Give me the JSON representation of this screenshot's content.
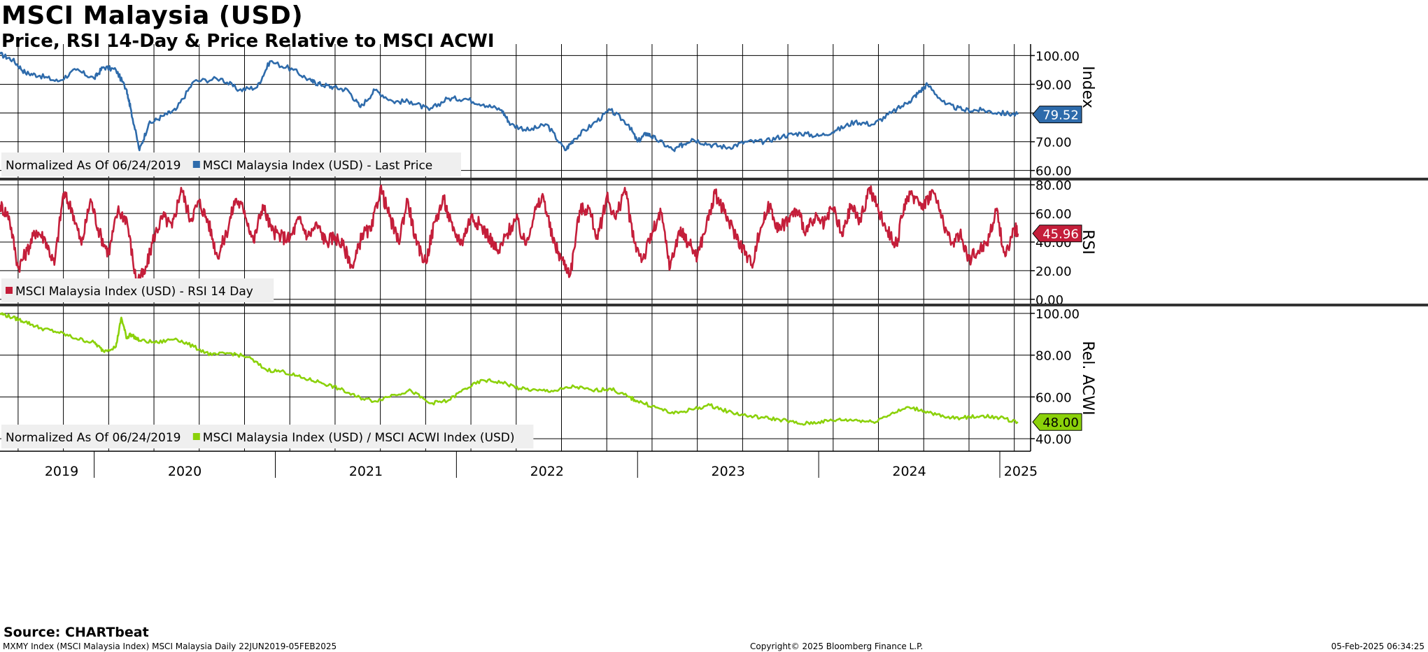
{
  "header": {
    "title": "MSCI Malaysia (USD)",
    "subtitle": "Price, RSI 14-Day & Price Relative to MSCI ACWI"
  },
  "footer": {
    "source": "Source: CHARTbeat",
    "left": "MXMY Index (MSCI Malaysia Index) MSCI Malaysia  Daily 22JUN2019-05FEB2025",
    "center": "Copyright© 2025 Bloomberg Finance L.P.",
    "right": "05-Feb-2025 06:34:25"
  },
  "chart_data": [
    {
      "type": "line",
      "panel": "price",
      "axis_label": "Index",
      "ylim": [
        57,
        104
      ],
      "y_ticks": [
        "100.00",
        "90.00",
        "80.00",
        "70.00",
        "60.00"
      ],
      "y_tick_values": [
        100,
        90,
        80,
        70,
        60
      ],
      "legend": {
        "prefix": "Normalized As Of 06/24/2019",
        "entry": "MSCI Malaysia Index (USD) - Last Price",
        "placement": "bottom-left"
      },
      "last_value_label": "79.52",
      "color": "#2e6bab",
      "series": [
        {
          "x": [
            2019.48,
            2019.55,
            2019.62,
            2019.7,
            2019.8,
            2019.9,
            2020.0,
            2020.05,
            2020.12,
            2020.18,
            2020.2,
            2020.25,
            2020.3,
            2020.38,
            2020.45,
            2020.55,
            2020.7,
            2020.8,
            2020.9,
            2020.97,
            2021.1,
            2021.2,
            2021.25,
            2021.32,
            2021.4,
            2021.47,
            2021.55,
            2021.65,
            2021.75,
            2021.85,
            2021.95,
            2022.05,
            2022.15,
            2022.25,
            2022.3,
            2022.4,
            2022.5,
            2022.6,
            2022.65,
            2022.75,
            2022.85,
            2022.95,
            2023.0,
            2023.05,
            2023.1,
            2023.2,
            2023.25,
            2023.3,
            2023.4,
            2023.5,
            2023.6,
            2023.7,
            2023.8,
            2023.9,
            2024.0,
            2024.1,
            2024.2,
            2024.3,
            2024.4,
            2024.5,
            2024.55,
            2024.6,
            2024.7,
            2024.8,
            2024.9,
            2025.0,
            2025.1
          ],
          "y": [
            100.5,
            98.5,
            94,
            93,
            91,
            95,
            92,
            96,
            95,
            88,
            82,
            67,
            76,
            79,
            81,
            91,
            92,
            88,
            89,
            98,
            95,
            91,
            90,
            89,
            88,
            82,
            88,
            84,
            84,
            81,
            85,
            85,
            83,
            81,
            76,
            74,
            76,
            67,
            71,
            76,
            81,
            76,
            70,
            73,
            71,
            67,
            69,
            71,
            69,
            68,
            70,
            70,
            72,
            73,
            72,
            74,
            77,
            76,
            80,
            84,
            87,
            90,
            83,
            81,
            81,
            80,
            79.5
          ]
        }
      ]
    },
    {
      "type": "line",
      "panel": "rsi",
      "axis_label": "RSI",
      "ylim": [
        -4,
        84
      ],
      "y_ticks": [
        "80.00",
        "60.00",
        "40.00",
        "20.00",
        "0.00"
      ],
      "y_tick_values": [
        80,
        60,
        40,
        20,
        0
      ],
      "legend": {
        "prefix": "",
        "entry": "MSCI Malaysia Index (USD) - RSI 14 Day",
        "placement": "bottom-left"
      },
      "last_value_label": "45.96",
      "color": "#c41e3a",
      "series": [
        {
          "x": [
            2019.48,
            2019.53,
            2019.58,
            2019.63,
            2019.68,
            2019.73,
            2019.78,
            2019.83,
            2019.88,
            2019.93,
            2019.98,
            2020.03,
            2020.08,
            2020.13,
            2020.18,
            2020.23,
            2020.28,
            2020.33,
            2020.38,
            2020.43,
            2020.48,
            2020.53,
            2020.58,
            2020.63,
            2020.68,
            2020.73,
            2020.78,
            2020.83,
            2020.88,
            2020.93,
            2020.98,
            2021.03,
            2021.08,
            2021.13,
            2021.18,
            2021.23,
            2021.28,
            2021.33,
            2021.38,
            2021.43,
            2021.48,
            2021.53,
            2021.58,
            2021.63,
            2021.68,
            2021.73,
            2021.78,
            2021.83,
            2021.88,
            2021.93,
            2021.98,
            2022.03,
            2022.08,
            2022.13,
            2022.18,
            2022.23,
            2022.28,
            2022.33,
            2022.38,
            2022.43,
            2022.48,
            2022.53,
            2022.58,
            2022.63,
            2022.68,
            2022.73,
            2022.78,
            2022.83,
            2022.88,
            2022.93,
            2022.98,
            2023.03,
            2023.08,
            2023.13,
            2023.18,
            2023.23,
            2023.28,
            2023.33,
            2023.38,
            2023.43,
            2023.48,
            2023.53,
            2023.58,
            2023.63,
            2023.68,
            2023.73,
            2023.78,
            2023.83,
            2023.88,
            2023.93,
            2023.98,
            2024.03,
            2024.08,
            2024.13,
            2024.18,
            2024.23,
            2024.28,
            2024.33,
            2024.38,
            2024.43,
            2024.48,
            2024.53,
            2024.58,
            2024.63,
            2024.68,
            2024.73,
            2024.78,
            2024.83,
            2024.88,
            2024.93,
            2024.98,
            2025.03,
            2025.08,
            2025.1
          ],
          "y": [
            66,
            58,
            22,
            34,
            48,
            42,
            24,
            74,
            62,
            38,
            70,
            46,
            32,
            62,
            56,
            14,
            18,
            44,
            58,
            50,
            78,
            56,
            68,
            54,
            30,
            46,
            70,
            62,
            40,
            66,
            48,
            44,
            42,
            56,
            44,
            52,
            40,
            44,
            36,
            22,
            46,
            48,
            78,
            58,
            40,
            70,
            38,
            26,
            54,
            70,
            48,
            40,
            58,
            52,
            44,
            32,
            46,
            56,
            38,
            60,
            72,
            42,
            28,
            18,
            62,
            64,
            42,
            72,
            56,
            78,
            40,
            28,
            46,
            60,
            22,
            48,
            40,
            30,
            52,
            74,
            60,
            48,
            36,
            24,
            50,
            66,
            48,
            56,
            62,
            48,
            56,
            52,
            64,
            44,
            66,
            54,
            78,
            62,
            48,
            38,
            70,
            72,
            66,
            76,
            58,
            38,
            46,
            28,
            34,
            40,
            62,
            30,
            50,
            46
          ]
        }
      ]
    },
    {
      "type": "line",
      "panel": "relative",
      "axis_label": "Rel. ACWI",
      "ylim": [
        34,
        104
      ],
      "y_ticks": [
        "100.00",
        "80.00",
        "60.00",
        "40.00"
      ],
      "y_tick_values": [
        100,
        80,
        60,
        40
      ],
      "legend": {
        "prefix": "Normalized As Of 06/24/2019",
        "entry": "MSCI Malaysia Index (USD) / MSCI ACWI Index (USD)",
        "placement": "bottom-left"
      },
      "last_value_label": "48.00",
      "color": "#8bd10a",
      "series": [
        {
          "x": [
            2019.48,
            2019.55,
            2019.62,
            2019.7,
            2019.8,
            2019.9,
            2020.0,
            2020.05,
            2020.12,
            2020.15,
            2020.18,
            2020.2,
            2020.25,
            2020.35,
            2020.45,
            2020.55,
            2020.65,
            2020.75,
            2020.85,
            2020.95,
            2021.05,
            2021.15,
            2021.25,
            2021.35,
            2021.45,
            2021.55,
            2021.65,
            2021.75,
            2021.85,
            2021.95,
            2022.05,
            2022.15,
            2022.25,
            2022.35,
            2022.45,
            2022.55,
            2022.65,
            2022.75,
            2022.85,
            2022.95,
            2023.0,
            2023.1,
            2023.2,
            2023.3,
            2023.4,
            2023.5,
            2023.6,
            2023.7,
            2023.8,
            2023.9,
            2024.0,
            2024.1,
            2024.2,
            2024.3,
            2024.4,
            2024.5,
            2024.6,
            2024.7,
            2024.8,
            2024.9,
            2025.0,
            2025.1
          ],
          "y": [
            100,
            98,
            96,
            93,
            91,
            88,
            86,
            82,
            84,
            98,
            88,
            90,
            87,
            86,
            88,
            84,
            80,
            81,
            79,
            73,
            72,
            69,
            67,
            64,
            60,
            58,
            61,
            63,
            57,
            58,
            64,
            68,
            67,
            64,
            63,
            63,
            65,
            63,
            64,
            60,
            58,
            55,
            52,
            54,
            56,
            53,
            51,
            50,
            49,
            47,
            48,
            49,
            49,
            48,
            52,
            55,
            53,
            50,
            50,
            51,
            50,
            48
          ]
        }
      ]
    }
  ],
  "x_axis": {
    "year_labels": [
      "2019",
      "2020",
      "2021",
      "2022",
      "2023",
      "2024",
      "2025"
    ],
    "year_label_x": [
      2019.28,
      2020.0,
      2021.0,
      2022.0,
      2023.0,
      2024.0,
      2025.0
    ],
    "year_boundaries": [
      2020,
      2021,
      2022,
      2023,
      2024,
      2025
    ],
    "grid_months": [
      2019.58,
      2019.83,
      2020.08,
      2020.33,
      2020.58,
      2020.83,
      2021.08,
      2021.33,
      2021.58,
      2021.83,
      2022.08,
      2022.33,
      2022.58,
      2022.83,
      2023.08,
      2023.33,
      2023.58,
      2023.83,
      2024.08,
      2024.33,
      2024.58,
      2024.83,
      2025.08
    ],
    "xlim": [
      2019.48,
      2025.17
    ]
  },
  "colors": {
    "price": "#2e6bab",
    "rsi": "#c41e3a",
    "relative": "#8bd10a",
    "grid": "#000000"
  }
}
